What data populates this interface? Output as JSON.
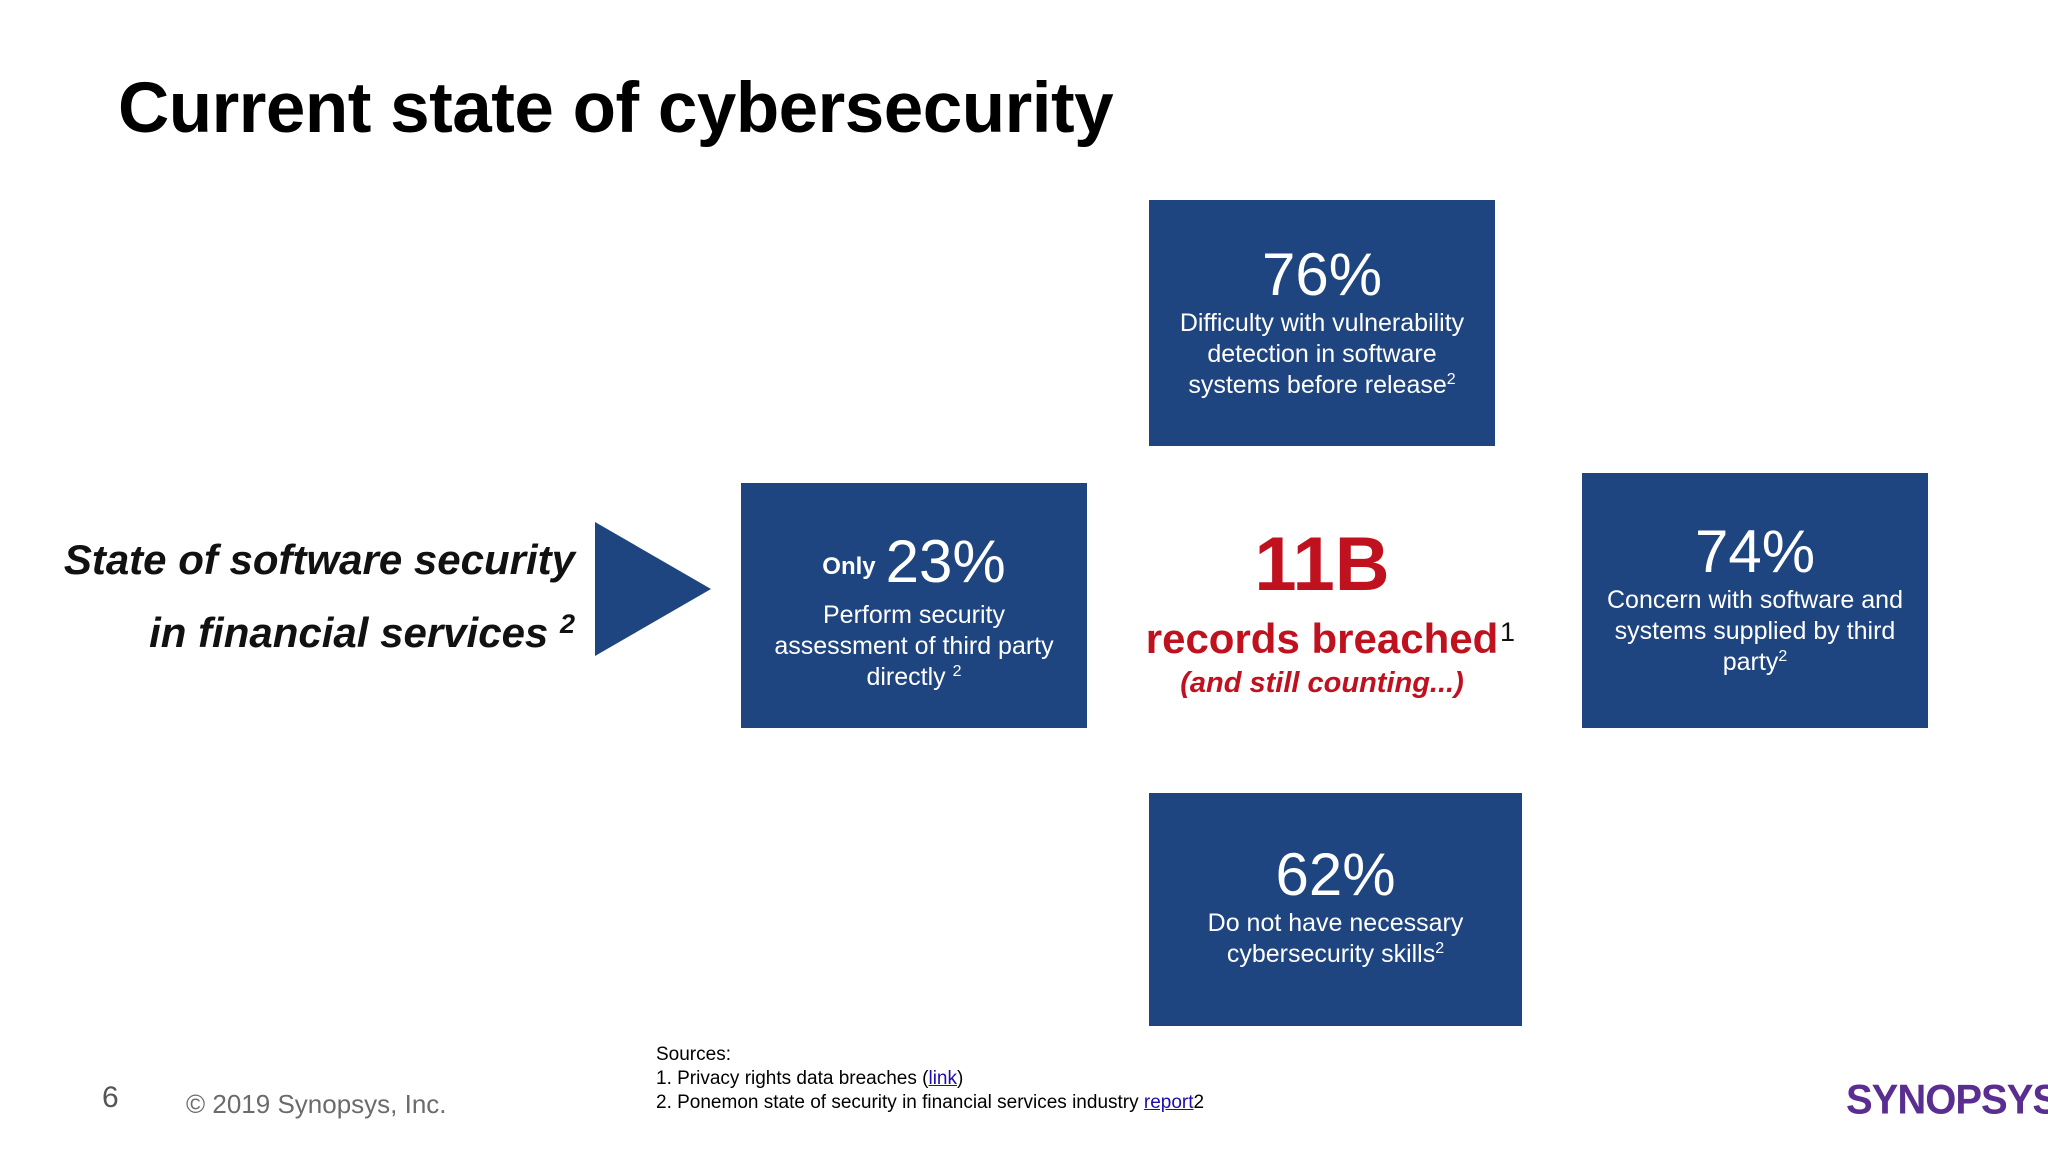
{
  "title": "Current state of cybersecurity",
  "subject": {
    "line1": "State of software security",
    "line2": "in financial services",
    "footnote": "2"
  },
  "stats": {
    "top": {
      "value": "76%",
      "description": "Difficulty with vulnerability detection in software systems before release",
      "footnote": "2"
    },
    "left": {
      "prefix": "Only",
      "value": "23%",
      "description": "Perform security assessment of third party directly",
      "footnote": "2"
    },
    "right": {
      "value": "74%",
      "description": "Concern with software and systems supplied by third party",
      "footnote": "2"
    },
    "bottom": {
      "value": "62%",
      "description": "Do not have necessary cybersecurity skills",
      "footnote": "2"
    },
    "center": {
      "value": "11B",
      "label": "records breached",
      "footnote": "1",
      "note": "(and still counting...)"
    }
  },
  "sources": {
    "heading": "Sources:",
    "item1_text": "1. Privacy rights data breaches (",
    "item1_link": "link",
    "item1_end": ")",
    "item2_text": "2. Ponemon state of security in financial services industry ",
    "item2_link": "report",
    "item2_end": "2"
  },
  "footer": {
    "page_number": "6",
    "copyright": "© 2019 Synopsys, Inc.",
    "logo_text": "SYNOPSYS",
    "logo_mark": "®"
  },
  "colors": {
    "box_blue": "#1f4581",
    "highlight_red": "#c0111f",
    "logo_purple": "#5a2d91"
  }
}
